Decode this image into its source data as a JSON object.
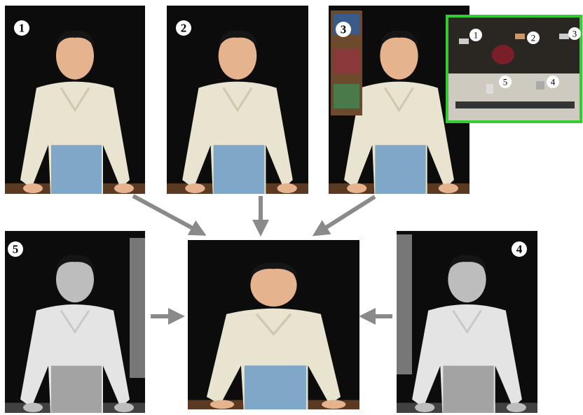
{
  "views": [
    {
      "label": "1"
    },
    {
      "label": "2"
    },
    {
      "label": "3"
    },
    {
      "label": "5"
    },
    {
      "label": "4"
    }
  ],
  "inset": {
    "labels": [
      "1",
      "2",
      "3",
      "4",
      "5"
    ]
  }
}
